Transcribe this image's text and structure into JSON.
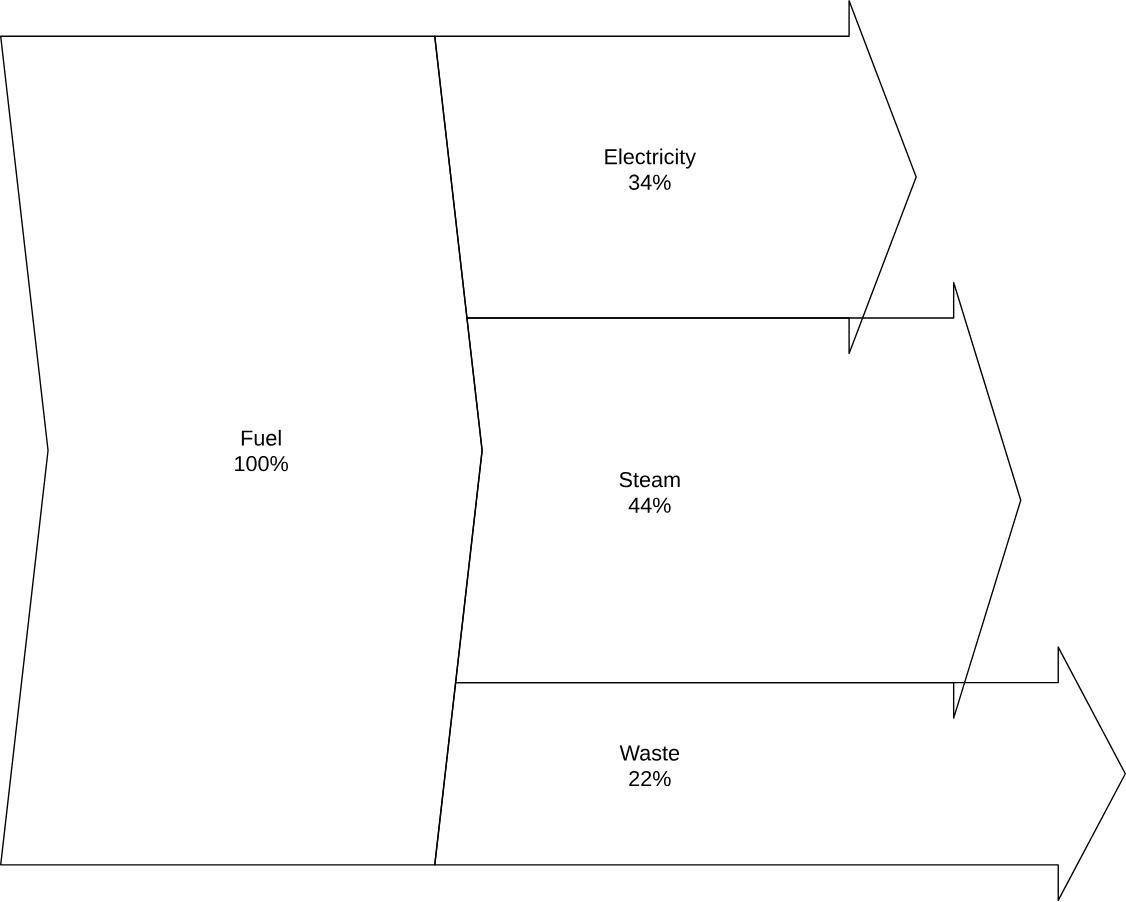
{
  "chart_data": {
    "type": "other",
    "categories": [
      "Fuel",
      "Electricity",
      "Steam",
      "Waste"
    ],
    "values": [
      100,
      34,
      44,
      22
    ],
    "value_labels": [
      "100%",
      "34%",
      "44%",
      "22%"
    ]
  }
}
